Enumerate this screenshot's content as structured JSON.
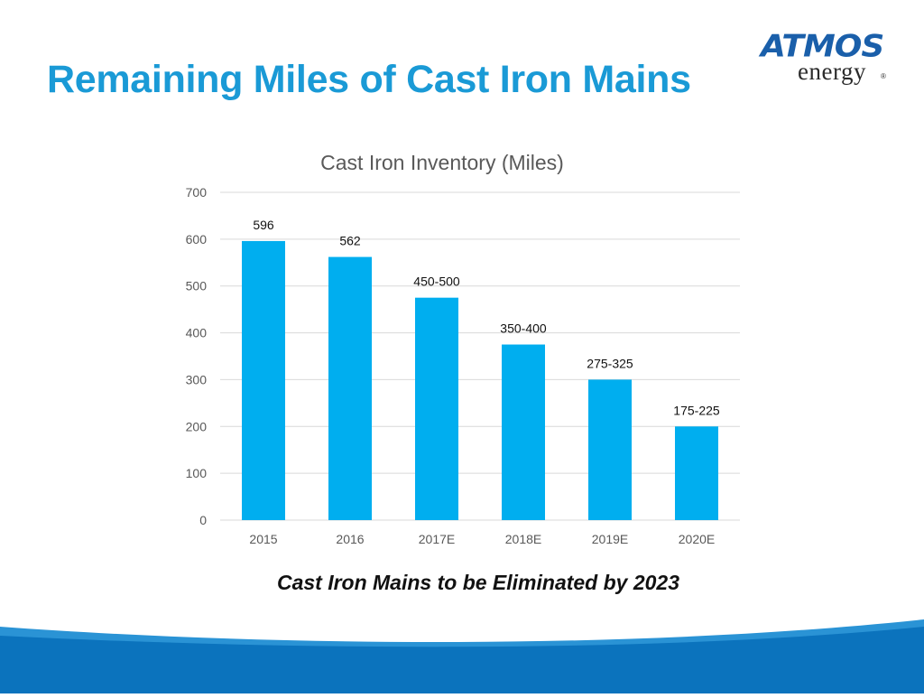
{
  "slide": {
    "title": "Remaining Miles of Cast Iron Mains",
    "subtitle": "Cast Iron Mains to be Eliminated by 2023"
  },
  "logo": {
    "word": "ATMOS",
    "sub": "energy",
    "reg": "®"
  },
  "colors": {
    "title": "#1a9ad6",
    "bar": "#00aeef",
    "grid": "#d9d9d9",
    "footer_dark": "#0b73bd",
    "footer_light": "#2a93d5",
    "logo_blue": "#1a5faa"
  },
  "chart_data": {
    "type": "bar",
    "title": "Cast Iron Inventory (Miles)",
    "categories": [
      "2015",
      "2016",
      "2017E",
      "2018E",
      "2019E",
      "2020E"
    ],
    "values": [
      596,
      562,
      475,
      375,
      300,
      200
    ],
    "data_labels": [
      "596",
      "562",
      "450-500",
      "350-400",
      "275-325",
      "175-225"
    ],
    "yticks": [
      0,
      100,
      200,
      300,
      400,
      500,
      600,
      700
    ],
    "ylim": [
      0,
      700
    ],
    "xlabel": "",
    "ylabel": "",
    "grid": true,
    "legend": "none"
  }
}
